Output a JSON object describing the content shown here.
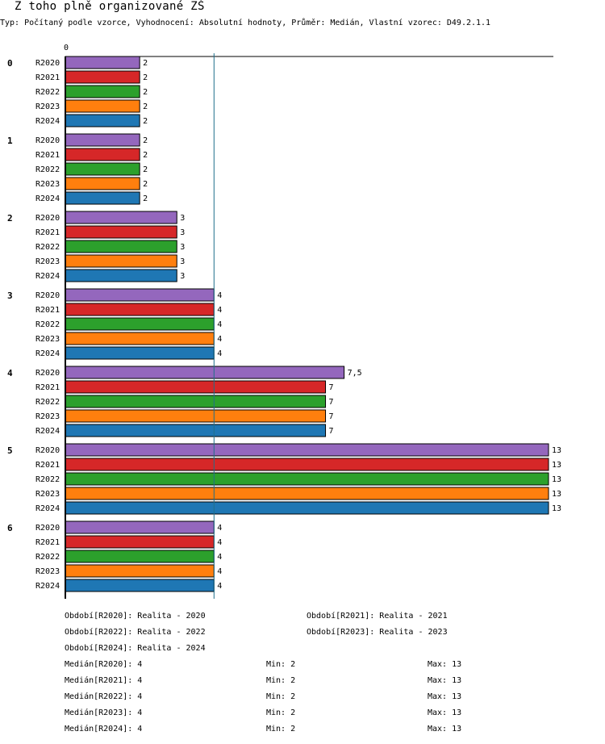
{
  "title": "Z toho plně organizované ZŠ",
  "subtitle": "Typ: Počítaný podle vzorce, Vyhodnocení: Absolutní hodnoty, Průměr: Medián, Vlastní vzorec: D49.2.1.1",
  "colors": {
    "R2020": "#9467bd",
    "R2021": "#d62728",
    "R2022": "#2ca02c",
    "R2023": "#ff7f0e",
    "R2024": "#1f77b4",
    "median_line": "#1f6f8b"
  },
  "chart_data": {
    "type": "bar",
    "orientation": "horizontal",
    "title": "Z toho plně organizované ZŠ",
    "axis_zero_label": "0",
    "xlim": [
      0,
      13
    ],
    "median_line_value": 4,
    "categories": [
      "0",
      "1",
      "2",
      "3",
      "4",
      "5",
      "6"
    ],
    "series": [
      {
        "name": "R2020",
        "values": [
          2,
          2,
          3,
          4,
          7.5,
          13,
          4
        ],
        "labels": [
          "2",
          "2",
          "3",
          "4",
          "7,5",
          "13",
          "4"
        ]
      },
      {
        "name": "R2021",
        "values": [
          2,
          2,
          3,
          4,
          7,
          13,
          4
        ],
        "labels": [
          "2",
          "2",
          "3",
          "4",
          "7",
          "13",
          "4"
        ]
      },
      {
        "name": "R2022",
        "values": [
          2,
          2,
          3,
          4,
          7,
          13,
          4
        ],
        "labels": [
          "2",
          "2",
          "3",
          "4",
          "7",
          "13",
          "4"
        ]
      },
      {
        "name": "R2023",
        "values": [
          2,
          2,
          3,
          4,
          7,
          13,
          4
        ],
        "labels": [
          "2",
          "2",
          "3",
          "4",
          "7",
          "13",
          "4"
        ]
      },
      {
        "name": "R2024",
        "values": [
          2,
          2,
          3,
          4,
          7,
          13,
          4
        ],
        "labels": [
          "2",
          "2",
          "3",
          "4",
          "7",
          "13",
          "4"
        ]
      }
    ]
  },
  "legend": {
    "periods": [
      "Období[R2020]: Realita - 2020",
      "Období[R2021]: Realita - 2021",
      "Období[R2022]: Realita - 2022",
      "Období[R2023]: Realita - 2023",
      "Období[R2024]: Realita - 2024"
    ],
    "stats": [
      {
        "median": "Medián[R2020]: 4",
        "min": "Min: 2",
        "max": "Max: 13"
      },
      {
        "median": "Medián[R2021]: 4",
        "min": "Min: 2",
        "max": "Max: 13"
      },
      {
        "median": "Medián[R2022]: 4",
        "min": "Min: 2",
        "max": "Max: 13"
      },
      {
        "median": "Medián[R2023]: 4",
        "min": "Min: 2",
        "max": "Max: 13"
      },
      {
        "median": "Medián[R2024]: 4",
        "min": "Min: 2",
        "max": "Max: 13"
      }
    ]
  }
}
